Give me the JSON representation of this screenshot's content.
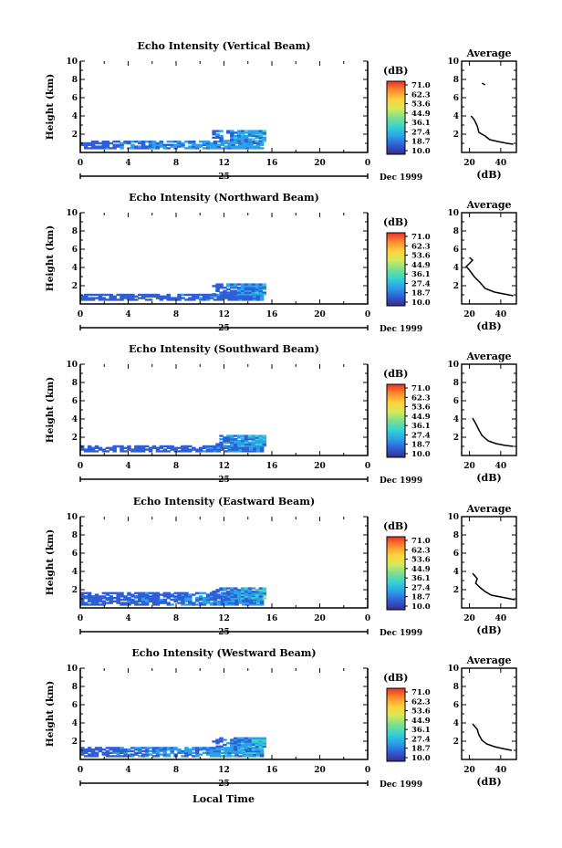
{
  "figure": {
    "x_axis_label": "Local Time",
    "date_label": "Dec 1999",
    "day_label": "25"
  },
  "colorbar": {
    "unit_label": "(dB)",
    "tick_labels": [
      "71.0",
      "62.3",
      "53.6",
      "44.9",
      "36.1",
      "27.4",
      "18.7",
      "10.0"
    ],
    "range": [
      10.0,
      71.0
    ],
    "colors": [
      "#3a2b8c",
      "#2e5fd6",
      "#2aa1e8",
      "#36d3d1",
      "#7ce08a",
      "#d8e85a",
      "#ffd23c",
      "#ff8a2e",
      "#e8322a"
    ]
  },
  "chart_data": [
    {
      "type": "heatmap",
      "title": "Echo Intensity (Vertical Beam)",
      "ylabel": "Height (km)",
      "xlim": [
        0,
        24
      ],
      "ylim": [
        0,
        10
      ],
      "x_ticks": [
        "0",
        "4",
        "8",
        "12",
        "16",
        "20",
        "0"
      ],
      "y_ticks": [
        "2",
        "4",
        "6",
        "8",
        "10"
      ],
      "approx_echo_regions": [
        {
          "x": [
            0.0,
            15.3
          ],
          "y": [
            0.4,
            1.2
          ],
          "dB": "18-30"
        },
        {
          "x": [
            11.0,
            15.3
          ],
          "y": [
            1.2,
            2.4
          ],
          "dB": "15-40"
        }
      ],
      "average_profile": {
        "title": "Average",
        "xlabel": "(dB)",
        "xlim": [
          15,
          50
        ],
        "x_ticks": [
          "20",
          "40"
        ],
        "y_ticks": [
          "2",
          "4",
          "6",
          "8",
          "10"
        ],
        "points": [
          [
            28,
            7.6
          ],
          [
            30,
            7.4
          ],
          [
            21,
            4.0
          ],
          [
            23,
            3.6
          ],
          [
            25,
            2.9
          ],
          [
            26,
            2.2
          ],
          [
            30,
            1.8
          ],
          [
            33,
            1.4
          ],
          [
            38,
            1.2
          ],
          [
            44,
            1.0
          ],
          [
            48,
            0.9
          ]
        ]
      }
    },
    {
      "type": "heatmap",
      "title": "Echo Intensity (Northward Beam)",
      "ylabel": "Height (km)",
      "xlim": [
        0,
        24
      ],
      "ylim": [
        0,
        10
      ],
      "x_ticks": [
        "0",
        "4",
        "8",
        "12",
        "16",
        "20",
        "0"
      ],
      "y_ticks": [
        "2",
        "4",
        "6",
        "8",
        "10"
      ],
      "approx_echo_regions": [
        {
          "x": [
            0.0,
            15.3
          ],
          "y": [
            0.4,
            1.0
          ],
          "dB": "15-25"
        },
        {
          "x": [
            11.0,
            15.3
          ],
          "y": [
            1.0,
            2.2
          ],
          "dB": "15-35"
        }
      ],
      "average_profile": {
        "title": "Average",
        "xlabel": "(dB)",
        "xlim": [
          15,
          50
        ],
        "x_ticks": [
          "20",
          "40"
        ],
        "y_ticks": [
          "2",
          "4",
          "6",
          "8",
          "10"
        ],
        "points": [
          [
            20,
            5.1
          ],
          [
            22,
            4.8
          ],
          [
            18,
            4.1
          ],
          [
            20,
            3.7
          ],
          [
            23,
            3.0
          ],
          [
            27,
            2.3
          ],
          [
            30,
            1.7
          ],
          [
            36,
            1.3
          ],
          [
            42,
            1.1
          ],
          [
            48,
            0.9
          ]
        ]
      }
    },
    {
      "type": "heatmap",
      "title": "Echo Intensity (Southward Beam)",
      "ylabel": "Height (km)",
      "xlim": [
        0,
        24
      ],
      "ylim": [
        0,
        10
      ],
      "x_ticks": [
        "0",
        "4",
        "8",
        "12",
        "16",
        "20",
        "0"
      ],
      "y_ticks": [
        "2",
        "4",
        "6",
        "8",
        "10"
      ],
      "approx_echo_regions": [
        {
          "x": [
            0.0,
            15.3
          ],
          "y": [
            0.4,
            1.0
          ],
          "dB": "15-25"
        },
        {
          "x": [
            11.0,
            15.3
          ],
          "y": [
            1.0,
            2.2
          ],
          "dB": "15-40"
        }
      ],
      "average_profile": {
        "title": "Average",
        "xlabel": "(dB)",
        "xlim": [
          15,
          50
        ],
        "x_ticks": [
          "20",
          "40"
        ],
        "y_ticks": [
          "2",
          "4",
          "6",
          "8",
          "10"
        ],
        "points": [
          [
            22,
            4.1
          ],
          [
            24,
            3.5
          ],
          [
            26,
            2.8
          ],
          [
            28,
            2.2
          ],
          [
            32,
            1.6
          ],
          [
            37,
            1.3
          ],
          [
            43,
            1.1
          ],
          [
            48,
            1.0
          ]
        ]
      }
    },
    {
      "type": "heatmap",
      "title": "Echo Intensity (Eastward Beam)",
      "ylabel": "Height (km)",
      "xlim": [
        0,
        24
      ],
      "ylim": [
        0,
        10
      ],
      "x_ticks": [
        "0",
        "4",
        "8",
        "12",
        "16",
        "20",
        "0"
      ],
      "y_ticks": [
        "2",
        "4",
        "6",
        "8",
        "10"
      ],
      "approx_echo_regions": [
        {
          "x": [
            0.0,
            15.3
          ],
          "y": [
            0.3,
            1.6
          ],
          "dB": "15-30"
        },
        {
          "x": [
            11.0,
            15.3
          ],
          "y": [
            1.0,
            2.2
          ],
          "dB": "15-40"
        }
      ],
      "average_profile": {
        "title": "Average",
        "xlabel": "(dB)",
        "xlim": [
          15,
          50
        ],
        "x_ticks": [
          "20",
          "40"
        ],
        "y_ticks": [
          "2",
          "4",
          "6",
          "8",
          "10"
        ],
        "points": [
          [
            22,
            3.8
          ],
          [
            25,
            3.2
          ],
          [
            24,
            2.7
          ],
          [
            27,
            2.2
          ],
          [
            30,
            1.8
          ],
          [
            34,
            1.4
          ],
          [
            40,
            1.2
          ],
          [
            46,
            1.0
          ],
          [
            49,
            0.9
          ]
        ]
      }
    },
    {
      "type": "heatmap",
      "title": "Echo Intensity (Westward Beam)",
      "ylabel": "Height (km)",
      "xlim": [
        0,
        24
      ],
      "ylim": [
        0,
        10
      ],
      "x_ticks": [
        "0",
        "4",
        "8",
        "12",
        "16",
        "20",
        "0"
      ],
      "y_ticks": [
        "2",
        "4",
        "6",
        "8",
        "10"
      ],
      "approx_echo_regions": [
        {
          "x": [
            0.0,
            15.3
          ],
          "y": [
            0.3,
            1.2
          ],
          "dB": "15-35"
        },
        {
          "x": [
            11.0,
            15.3
          ],
          "y": [
            1.0,
            2.4
          ],
          "dB": "15-40"
        }
      ],
      "average_profile": {
        "title": "Average",
        "xlabel": "(dB)",
        "xlim": [
          15,
          50
        ],
        "x_ticks": [
          "20",
          "40"
        ],
        "y_ticks": [
          "2",
          "4",
          "6",
          "8",
          "10"
        ],
        "points": [
          [
            22,
            3.9
          ],
          [
            25,
            3.3
          ],
          [
            26,
            2.7
          ],
          [
            28,
            2.1
          ],
          [
            31,
            1.7
          ],
          [
            36,
            1.4
          ],
          [
            41,
            1.2
          ],
          [
            47,
            1.0
          ]
        ]
      }
    }
  ]
}
